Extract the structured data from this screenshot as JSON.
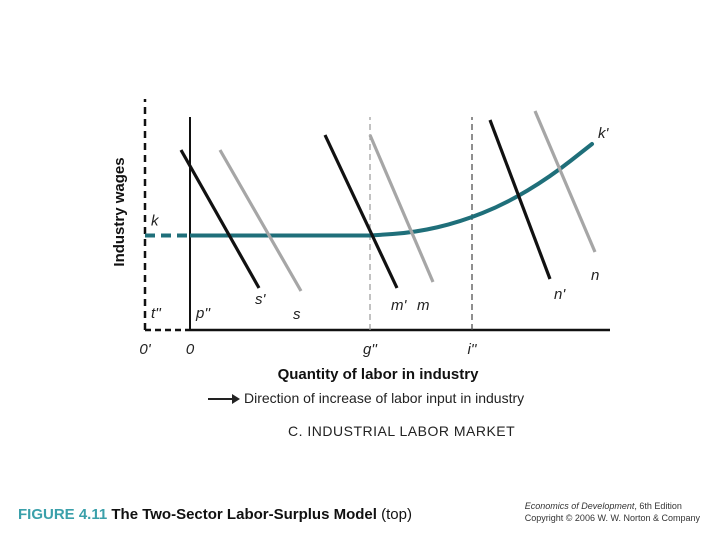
{
  "chart_data": {
    "type": "line",
    "ylabel": "Industry wages",
    "xlabel": "Quantity of labor in industry",
    "origins": {
      "shifted": "0'",
      "main": "0"
    },
    "y_axis_label": "k",
    "y_tick_label": "t''",
    "x_tick_labels": [
      {
        "label": "p''"
      },
      {
        "label": "g''"
      },
      {
        "label": "i''"
      }
    ],
    "supply_curve": {
      "name": "k'",
      "flat_segment": {
        "from_x": -1.5,
        "to_x": 6.0,
        "y": 3.15
      },
      "rising_segment": [
        [
          6.0,
          3.15
        ],
        [
          7.5,
          3.25
        ],
        [
          9.0,
          3.6
        ],
        [
          10.5,
          4.2
        ],
        [
          12.0,
          5.1
        ],
        [
          13.4,
          6.2
        ]
      ]
    },
    "demand_curves": [
      {
        "name": "s'",
        "color": "#111111",
        "points": [
          [
            -0.3,
            6.0
          ],
          [
            2.3,
            1.4
          ]
        ]
      },
      {
        "name": "s",
        "color": "#a6a6a6",
        "points": [
          [
            1.0,
            6.0
          ],
          [
            3.7,
            1.3
          ]
        ]
      },
      {
        "name": "m'",
        "color": "#111111",
        "points": [
          [
            4.5,
            6.5
          ],
          [
            6.9,
            1.4
          ]
        ]
      },
      {
        "name": "m",
        "color": "#a6a6a6",
        "points": [
          [
            6.0,
            6.5
          ],
          [
            8.1,
            1.6
          ]
        ]
      },
      {
        "name": "n'",
        "color": "#111111",
        "points": [
          [
            10.0,
            7.0
          ],
          [
            12.0,
            1.7
          ]
        ]
      },
      {
        "name": "n",
        "color": "#a6a6a6",
        "points": [
          [
            11.5,
            7.3
          ],
          [
            13.5,
            2.6
          ]
        ]
      }
    ],
    "guides": {
      "g_x": 6.0,
      "i_x": 9.4
    },
    "xlim": [
      -1.5,
      14.0
    ],
    "ylim": [
      0,
      7.7
    ],
    "grid": false
  },
  "direction_text": "Direction of increase of labor input in industry",
  "panel_title": "C. INDUSTRIAL LABOR MARKET",
  "caption": {
    "figure_number": "FIGURE 4.11",
    "title": "The Two-Sector Labor-Surplus Model",
    "qualifier": "(top)"
  },
  "credit": {
    "book": "Economics of Development",
    "edition": ", 6th Edition",
    "copyright": "Copyright © 2006 W. W. Norton & Company"
  },
  "colors": {
    "supply": "#1f6f7a",
    "dark_curve": "#111111",
    "light_curve": "#a6a6a6",
    "caption_accent": "#3aa0aa"
  }
}
